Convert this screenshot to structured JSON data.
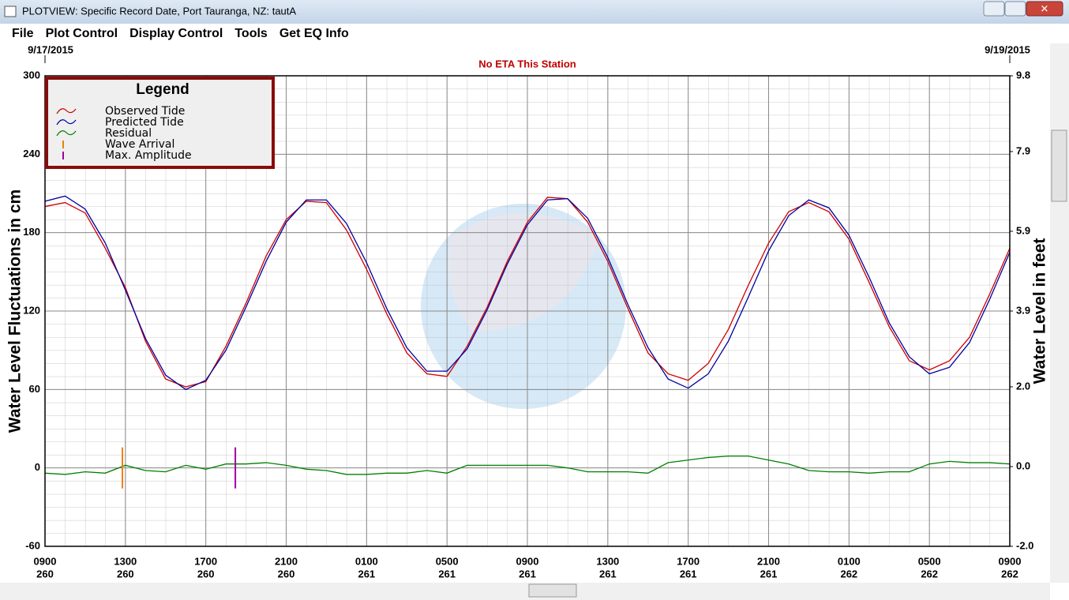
{
  "window": {
    "title": "PLOTVIEW: Specific Record Date, Port Tauranga, NZ: tautA",
    "menu": [
      "File",
      "Plot Control",
      "Display Control",
      "Tools",
      "Get EQ Info"
    ]
  },
  "chart_data": {
    "type": "line",
    "start_date": "9/17/2015",
    "end_date": "9/19/2015",
    "subtitle": "No ETA This Station",
    "y_label": "Water Level Fluctuations in cm",
    "y2_label": "Water Level in feet",
    "legend_title": "Legend",
    "grid": true,
    "x": [
      0,
      1,
      2,
      3,
      4,
      5,
      6,
      7,
      8,
      9,
      10,
      11,
      12,
      13,
      14,
      15,
      16,
      17,
      18,
      19,
      20,
      21,
      22,
      23,
      24,
      25,
      26,
      27,
      28,
      29,
      30,
      31,
      32,
      33,
      34,
      35,
      36,
      37,
      38,
      39,
      40,
      41,
      42,
      43,
      44,
      45,
      46,
      47,
      48
    ],
    "xlim": [
      0,
      48
    ],
    "xticks": [
      {
        "value": 0,
        "label": "0900"
      },
      {
        "value": 4,
        "label": "1300"
      },
      {
        "value": 8,
        "label": "1700"
      },
      {
        "value": 12,
        "label": "2100"
      },
      {
        "value": 16,
        "label": "0100"
      },
      {
        "value": 20,
        "label": "0500"
      },
      {
        "value": 24,
        "label": "0900"
      },
      {
        "value": 28,
        "label": "1300"
      },
      {
        "value": 32,
        "label": "1700"
      },
      {
        "value": 36,
        "label": "2100"
      },
      {
        "value": 40,
        "label": "0100"
      },
      {
        "value": 44,
        "label": "0500"
      },
      {
        "value": 48,
        "label": "0900"
      }
    ],
    "xtick_days": [
      "260",
      "260",
      "260",
      "260",
      "261",
      "261",
      "261",
      "261",
      "261",
      "261",
      "262",
      "262",
      "262"
    ],
    "ylim": [
      -60,
      300
    ],
    "yticks": [
      -60,
      0,
      60,
      120,
      180,
      240,
      300
    ],
    "y2lim": [
      -2.0,
      9.8
    ],
    "y2ticks": [
      {
        "value": -2,
        "label": "-2.0"
      },
      {
        "value": 0,
        "label": "0.0"
      },
      {
        "value": 2,
        "label": "2.0"
      },
      {
        "value": 3.9,
        "label": "3.9"
      },
      {
        "value": 5.9,
        "label": "5.9"
      },
      {
        "value": 7.9,
        "label": "7.9"
      },
      {
        "value": 9.8,
        "label": "9.8"
      }
    ],
    "series": [
      {
        "name": "Observed Tide",
        "color": "#d00000",
        "values": [
          200,
          203,
          195,
          168,
          138,
          97,
          68,
          62,
          66,
          93,
          126,
          162,
          190,
          204,
          203,
          182,
          152,
          118,
          88,
          72,
          70,
          93,
          123,
          158,
          188,
          207,
          206,
          188,
          158,
          122,
          88,
          72,
          67,
          80,
          106,
          140,
          172,
          196,
          203,
          196,
          175,
          142,
          108,
          82,
          75,
          82,
          100,
          133,
          168
        ]
      },
      {
        "name": "Predicted Tide",
        "color": "#0000a0",
        "values": [
          204,
          208,
          198,
          172,
          136,
          99,
          71,
          60,
          67,
          90,
          123,
          158,
          188,
          205,
          205,
          187,
          157,
          122,
          92,
          74,
          74,
          91,
          121,
          156,
          186,
          205,
          206,
          191,
          161,
          125,
          92,
          68,
          61,
          72,
          97,
          131,
          166,
          193,
          205,
          199,
          178,
          146,
          111,
          85,
          72,
          77,
          96,
          129,
          165
        ]
      },
      {
        "name": "Residual",
        "color": "#008000",
        "values": [
          -4,
          -5,
          -3,
          -4,
          2,
          -2,
          -3,
          2,
          -1,
          3,
          3,
          4,
          2,
          -1,
          -2,
          -5,
          -5,
          -4,
          -4,
          -2,
          -4,
          2,
          2,
          2,
          2,
          2,
          0,
          -3,
          -3,
          -3,
          -4,
          4,
          6,
          8,
          9,
          9,
          6,
          3,
          -2,
          -3,
          -3,
          -4,
          -3,
          -3,
          3,
          5,
          4,
          4,
          3
        ]
      }
    ],
    "markers": [
      {
        "name": "Wave Arrival",
        "color": "#f08000",
        "x": 3.85
      },
      {
        "name": "Max. Amplitude",
        "color": "#a000a0",
        "x": 9.47
      }
    ]
  }
}
